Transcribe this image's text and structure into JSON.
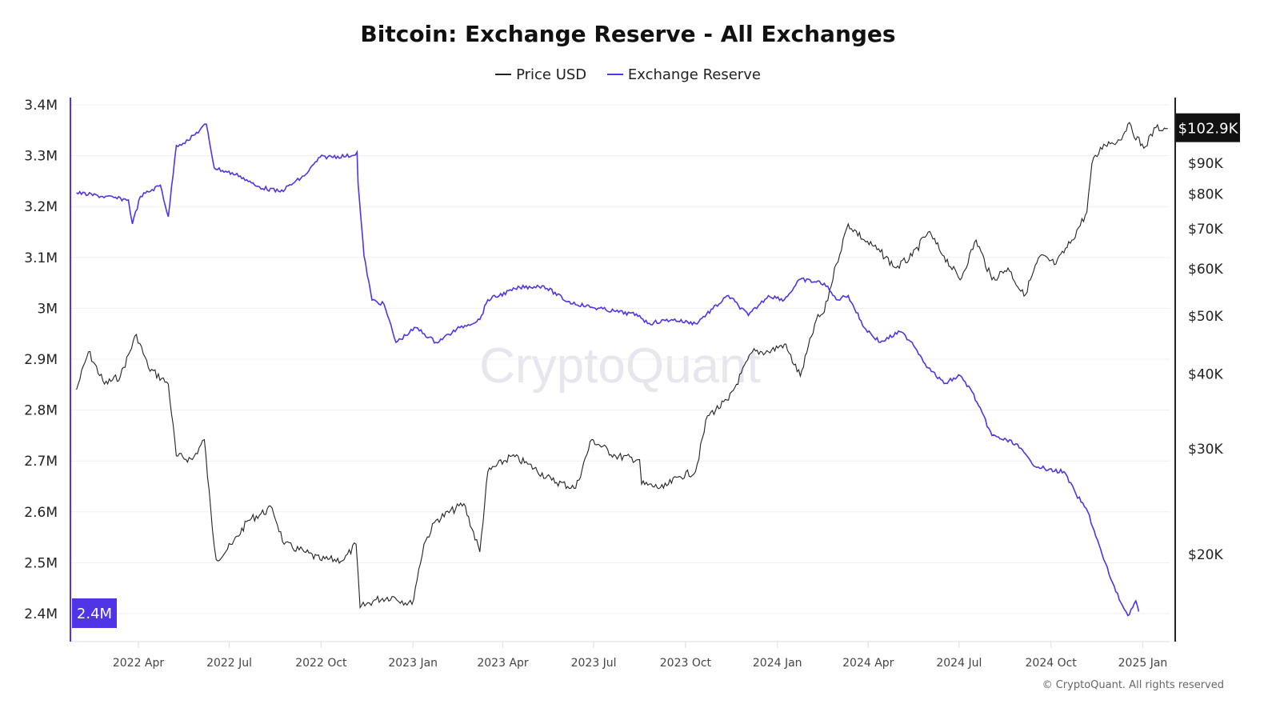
{
  "chart_data": {
    "type": "line",
    "title": "Bitcoin: Exchange Reserve - All Exchanges",
    "legend_position": "top-center",
    "grid": true,
    "watermark": "CryptoQuant",
    "copyright": "© CryptoQuant. All rights reserved",
    "x_ticks": [
      "2022 Apr",
      "2022 Jul",
      "2022 Oct",
      "2023 Jan",
      "2023 Apr",
      "2023 Jul",
      "2023 Oct",
      "2024 Jan",
      "2024 Apr",
      "2024 Jul",
      "2024 Oct",
      "2025 Jan"
    ],
    "x_tick_dates": [
      "2022-04-01",
      "2022-07-01",
      "2022-10-01",
      "2023-01-01",
      "2023-04-01",
      "2023-07-01",
      "2023-10-01",
      "2024-01-01",
      "2024-04-01",
      "2024-07-01",
      "2024-10-01",
      "2025-01-01"
    ],
    "left_axis": {
      "label": "Exchange Reserve",
      "ylim": [
        2.35,
        3.41
      ],
      "ticks": [
        3.4,
        3.3,
        3.2,
        3.1,
        3.0,
        2.9,
        2.8,
        2.7,
        2.6,
        2.5,
        2.4
      ],
      "tick_labels": [
        "3.4M",
        "3.3M",
        "3.2M",
        "3.1M",
        "3M",
        "2.9M",
        "2.8M",
        "2.7M",
        "2.6M",
        "2.5M",
        "2.4M"
      ],
      "current_badge": "2.4M",
      "color": "#4f35e6"
    },
    "right_axis": {
      "label": "Price USD",
      "scale": "log",
      "ticks": [
        90,
        80,
        70,
        60,
        50,
        40,
        30,
        20
      ],
      "tick_labels": [
        "$90K",
        "$80K",
        "$70K",
        "$60K",
        "$50K",
        "$40K",
        "$30K",
        "$20K"
      ],
      "current_badge": "$102.9K",
      "color": "#222222"
    },
    "series": [
      {
        "name": "Price USD",
        "axis": "right",
        "unit": "K USD",
        "color": "#222222",
        "x": [
          "2022-01-29",
          "2022-02-10",
          "2022-02-26",
          "2022-03-14",
          "2022-03-30",
          "2022-04-11",
          "2022-05-01",
          "2022-05-09",
          "2022-05-25",
          "2022-06-06",
          "2022-06-14",
          "2022-06-18",
          "2022-07-04",
          "2022-07-20",
          "2022-08-13",
          "2022-08-25",
          "2022-09-14",
          "2022-09-30",
          "2022-10-24",
          "2022-11-05",
          "2022-11-09",
          "2022-11-25",
          "2022-12-11",
          "2022-12-31",
          "2023-01-12",
          "2023-01-24",
          "2023-02-21",
          "2023-03-09",
          "2023-03-17",
          "2023-04-10",
          "2023-04-26",
          "2023-05-20",
          "2023-06-13",
          "2023-06-29",
          "2023-07-23",
          "2023-08-16",
          "2023-08-18",
          "2023-09-09",
          "2023-09-25",
          "2023-10-11",
          "2023-10-23",
          "2023-11-13",
          "2023-12-07",
          "2023-12-23",
          "2024-01-08",
          "2024-01-24",
          "2024-02-09",
          "2024-02-17",
          "2024-02-29",
          "2024-03-12",
          "2024-03-28",
          "2024-04-13",
          "2024-04-29",
          "2024-05-15",
          "2024-05-31",
          "2024-06-16",
          "2024-07-02",
          "2024-07-18",
          "2024-08-03",
          "2024-08-19",
          "2024-09-04",
          "2024-09-20",
          "2024-10-06",
          "2024-10-22",
          "2024-11-06",
          "2024-11-11",
          "2024-11-23",
          "2024-12-09",
          "2024-12-17",
          "2025-01-02",
          "2025-01-14",
          "2025-01-26"
        ],
        "values": [
          37.7,
          43.6,
          38.5,
          39.7,
          46.6,
          41.0,
          38.5,
          29.2,
          28.8,
          31.1,
          22.1,
          19.6,
          20.8,
          22.8,
          23.9,
          20.8,
          20.2,
          19.6,
          19.6,
          20.8,
          16.3,
          16.8,
          17.0,
          16.5,
          20.8,
          22.8,
          24.3,
          20.2,
          27.5,
          29.2,
          28.3,
          26.6,
          25.8,
          31.1,
          29.2,
          28.8,
          26.2,
          25.8,
          27.0,
          27.5,
          34.1,
          36.2,
          43.6,
          43.6,
          44.9,
          39.7,
          49.3,
          50.8,
          61.1,
          71.3,
          67.0,
          64.0,
          60.2,
          63.0,
          69.1,
          63.0,
          57.5,
          67.0,
          57.5,
          60.2,
          54.0,
          63.0,
          61.1,
          67.0,
          74.6,
          89.8,
          96.9,
          98.4,
          104.7,
          95.4,
          103.2,
          102.9
        ]
      },
      {
        "name": "Exchange Reserve",
        "axis": "left",
        "unit": "M BTC",
        "color": "#4f35e6",
        "x": [
          "2022-01-29",
          "2022-03-22",
          "2022-03-26",
          "2022-04-03",
          "2022-04-23",
          "2022-05-01",
          "2022-05-09",
          "2022-05-21",
          "2022-06-08",
          "2022-06-16",
          "2022-07-12",
          "2022-07-28",
          "2022-08-21",
          "2022-09-14",
          "2022-09-30",
          "2022-11-01",
          "2022-11-06",
          "2022-11-07",
          "2022-11-13",
          "2022-11-21",
          "2022-12-03",
          "2022-12-15",
          "2023-01-04",
          "2023-01-24",
          "2023-02-17",
          "2023-03-09",
          "2023-03-17",
          "2023-04-18",
          "2023-05-12",
          "2023-06-05",
          "2023-06-29",
          "2023-07-23",
          "2023-08-16",
          "2023-08-24",
          "2023-09-17",
          "2023-10-11",
          "2023-11-13",
          "2023-12-03",
          "2023-12-23",
          "2024-01-08",
          "2024-01-24",
          "2024-02-17",
          "2024-02-29",
          "2024-03-12",
          "2024-03-28",
          "2024-04-13",
          "2024-05-03",
          "2024-05-15",
          "2024-05-31",
          "2024-06-16",
          "2024-07-02",
          "2024-07-14",
          "2024-08-03",
          "2024-08-27",
          "2024-09-12",
          "2024-09-28",
          "2024-10-14",
          "2024-10-26",
          "2024-11-07",
          "2024-11-23",
          "2024-12-05",
          "2024-12-17",
          "2024-12-25",
          "2024-12-28"
        ],
        "values": [
          3.227,
          3.213,
          3.166,
          3.22,
          3.242,
          3.18,
          3.32,
          3.33,
          3.362,
          3.276,
          3.26,
          3.24,
          3.229,
          3.26,
          3.297,
          3.3,
          3.307,
          3.245,
          3.103,
          3.016,
          3.008,
          2.933,
          2.962,
          2.933,
          2.962,
          2.978,
          3.017,
          3.041,
          3.044,
          3.013,
          3.002,
          2.994,
          2.986,
          2.97,
          2.978,
          2.97,
          3.025,
          2.986,
          3.025,
          3.017,
          3.057,
          3.049,
          3.017,
          3.025,
          2.962,
          2.933,
          2.954,
          2.933,
          2.883,
          2.852,
          2.868,
          2.836,
          2.75,
          2.734,
          2.695,
          2.682,
          2.679,
          2.635,
          2.6,
          2.506,
          2.443,
          2.396,
          2.425,
          2.404
        ]
      }
    ]
  }
}
